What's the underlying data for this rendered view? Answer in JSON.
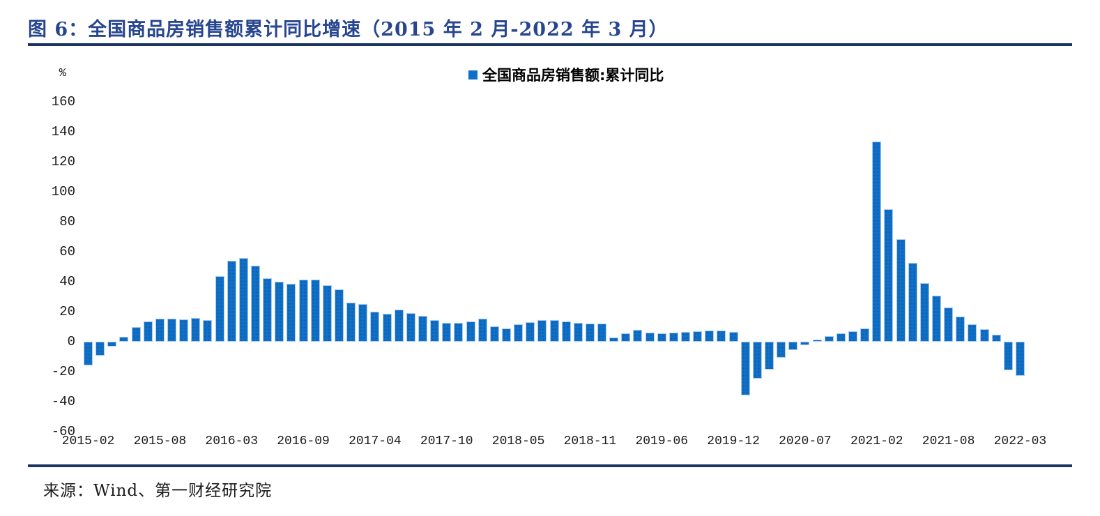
{
  "header": {
    "title": "图 6：全国商品房销售额累计同比增速（2015 年 2 月-2022 年 3 月）"
  },
  "legend": {
    "label": "全国商品房销售额:累计同比"
  },
  "footer": {
    "source": "来源：Wind、第一财经研究院"
  },
  "colors": {
    "bar": "#1070C8",
    "bar_border": "#A9CAEC",
    "title": "#27468F",
    "rule": "#1C3464",
    "text": "#1A1A1A"
  },
  "chart_data": {
    "type": "bar",
    "title": "全国商品房销售额累计同比增速（2015年2月-2022年3月）",
    "series_name": "全国商品房销售额:累计同比",
    "xlabel": "",
    "ylabel": "%",
    "ylim": [
      -60,
      160
    ],
    "y_ticks": [
      160,
      140,
      120,
      100,
      80,
      60,
      40,
      20,
      0,
      -20,
      -40,
      -60
    ],
    "grid": false,
    "legend_position": "top-center",
    "x_tick_every": 6,
    "x_tick_labels": [
      "2015-02",
      "2015-08",
      "2016-03",
      "2016-09",
      "2017-04",
      "2017-10",
      "2018-05",
      "2018-11",
      "2019-06",
      "2019-12",
      "2020-07",
      "2021-02",
      "2021-08",
      "2022-03"
    ],
    "categories": [
      "2015-02",
      "2015-03",
      "2015-04",
      "2015-05",
      "2015-06",
      "2015-07",
      "2015-08",
      "2015-09",
      "2015-10",
      "2015-11",
      "2015-12",
      "2016-02",
      "2016-03",
      "2016-04",
      "2016-05",
      "2016-06",
      "2016-07",
      "2016-08",
      "2016-09",
      "2016-10",
      "2016-11",
      "2016-12",
      "2017-02",
      "2017-03",
      "2017-04",
      "2017-05",
      "2017-06",
      "2017-07",
      "2017-08",
      "2017-09",
      "2017-10",
      "2017-11",
      "2017-12",
      "2018-02",
      "2018-03",
      "2018-04",
      "2018-05",
      "2018-06",
      "2018-07",
      "2018-08",
      "2018-09",
      "2018-10",
      "2018-11",
      "2018-12",
      "2019-02",
      "2019-03",
      "2019-04",
      "2019-05",
      "2019-06",
      "2019-07",
      "2019-08",
      "2019-09",
      "2019-10",
      "2019-11",
      "2019-12",
      "2020-02",
      "2020-03",
      "2020-04",
      "2020-05",
      "2020-06",
      "2020-07",
      "2020-08",
      "2020-09",
      "2020-10",
      "2020-11",
      "2020-12",
      "2021-02",
      "2021-03",
      "2021-04",
      "2021-05",
      "2021-06",
      "2021-07",
      "2021-08",
      "2021-09",
      "2021-10",
      "2021-11",
      "2021-12",
      "2022-02",
      "2022-03"
    ],
    "values": [
      -15.8,
      -9.3,
      -3.1,
      3.1,
      10.0,
      13.4,
      15.3,
      15.3,
      14.9,
      15.6,
      14.4,
      43.6,
      54.1,
      55.9,
      50.7,
      42.1,
      39.8,
      38.7,
      41.3,
      41.2,
      37.5,
      34.8,
      26.0,
      25.1,
      20.1,
      18.6,
      21.5,
      18.9,
      17.2,
      14.6,
      12.6,
      12.7,
      13.7,
      15.3,
      10.4,
      9.0,
      11.8,
      13.2,
      14.4,
      14.5,
      13.3,
      12.5,
      12.1,
      12.2,
      2.8,
      5.6,
      8.1,
      6.1,
      5.6,
      6.2,
      6.7,
      7.1,
      7.3,
      7.3,
      6.5,
      -35.9,
      -24.7,
      -18.6,
      -10.6,
      -5.4,
      -2.1,
      1.6,
      3.8,
      5.8,
      7.2,
      8.7,
      133.4,
      88.5,
      68.2,
      52.4,
      38.9,
      30.7,
      22.8,
      16.6,
      11.8,
      8.5,
      4.8,
      -19.3,
      -22.7
    ]
  }
}
